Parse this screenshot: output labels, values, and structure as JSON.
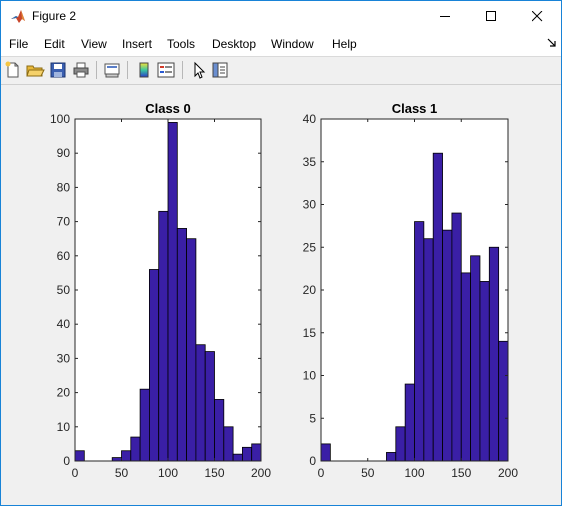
{
  "window": {
    "title": "Figure 2",
    "accent": "#1883d7"
  },
  "menu": {
    "items": [
      "File",
      "Edit",
      "View",
      "Insert",
      "Tools",
      "Desktop",
      "Window",
      "Help"
    ]
  },
  "toolbar": {
    "buttons": [
      "new-figure-icon",
      "open-file-icon",
      "save-icon",
      "print-icon",
      "link-plot-icon",
      "insert-colorbar-icon",
      "insert-legend-icon",
      "edit-plot-cursor-icon",
      "property-inspector-icon"
    ]
  },
  "chart_data": [
    {
      "type": "bar",
      "title": "Class 0",
      "xlim": [
        0,
        200
      ],
      "ylim": [
        0,
        100
      ],
      "xticks": [
        "0",
        "50",
        "100",
        "150",
        "200"
      ],
      "yticks": [
        "0",
        "10",
        "20",
        "30",
        "40",
        "50",
        "60",
        "70",
        "80",
        "90",
        "100"
      ],
      "bin_start": 0,
      "bin_width": 10,
      "values": [
        3,
        0,
        0,
        0,
        1,
        3,
        7,
        21,
        56,
        73,
        99,
        68,
        65,
        34,
        32,
        18,
        10,
        2,
        4,
        5
      ],
      "bar_color": "#3a1fa6",
      "edge_color": "#000000",
      "grid": false
    },
    {
      "type": "bar",
      "title": "Class 1",
      "xlim": [
        0,
        200
      ],
      "ylim": [
        0,
        40
      ],
      "xticks": [
        "0",
        "50",
        "100",
        "150",
        "200"
      ],
      "yticks": [
        "0",
        "5",
        "10",
        "15",
        "20",
        "25",
        "30",
        "35",
        "40"
      ],
      "bin_start": 0,
      "bin_width": 10,
      "values": [
        2,
        0,
        0,
        0,
        0,
        0,
        0,
        1,
        4,
        9,
        28,
        26,
        36,
        27,
        29,
        22,
        24,
        21,
        25,
        14
      ],
      "bar_color": "#3a1fa6",
      "edge_color": "#000000",
      "grid": false
    }
  ]
}
